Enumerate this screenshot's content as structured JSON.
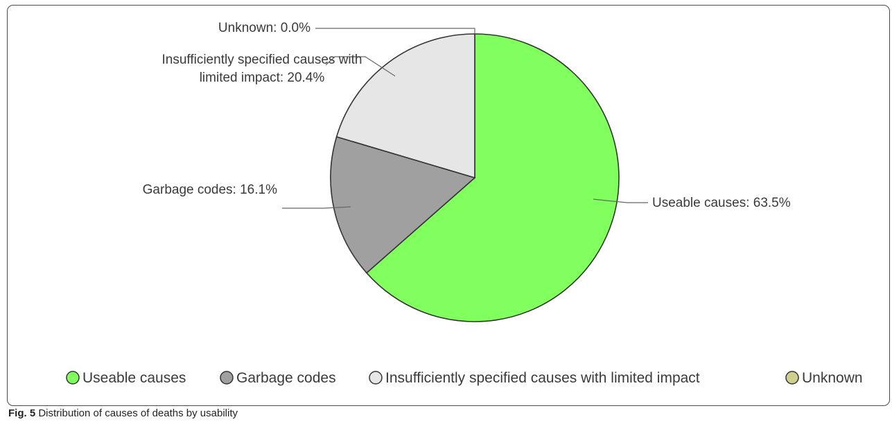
{
  "chart_data": {
    "type": "pie",
    "title": "",
    "slices": [
      {
        "name": "Useable causes",
        "value": 63.5,
        "label": "Useable causes: 63.5%",
        "color": "#80ff5e"
      },
      {
        "name": "Garbage codes",
        "value": 16.1,
        "label": "Garbage codes: 16.1%",
        "color": "#a0a0a0"
      },
      {
        "name": "Insufficiently specified causes with limited impact",
        "value": 20.4,
        "label_lines": [
          "Insufficiently specified causes with",
          "limited impact: 20.4%"
        ],
        "color": "#e6e6e6"
      },
      {
        "name": "Unknown",
        "value": 0.0,
        "label": "Unknown: 0.0%",
        "color": "#cfcf8e"
      }
    ],
    "legend_position": "bottom"
  },
  "caption": {
    "fig_label": "Fig. 5",
    "text": " Distribution of causes of deaths by usability"
  }
}
